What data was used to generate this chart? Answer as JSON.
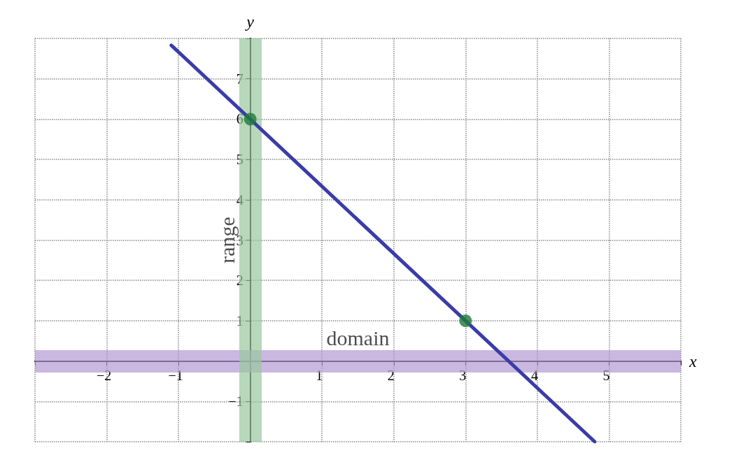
{
  "chart_data": {
    "type": "line",
    "xlabel": "x",
    "ylabel": "y",
    "xlim": [
      -3,
      6
    ],
    "ylim": [
      -2,
      8
    ],
    "xticks": [
      {
        "value": -3,
        "label": null
      },
      {
        "value": -2,
        "label": "−2"
      },
      {
        "value": -1,
        "label": "−1"
      },
      {
        "value": 0,
        "label": null
      },
      1,
      2,
      3,
      4,
      5,
      {
        "value": 6,
        "label": null
      }
    ],
    "yticks": [
      {
        "value": -2,
        "label": null
      },
      {
        "value": -1,
        "label": "−1"
      },
      {
        "value": 0,
        "label": null
      },
      1,
      2,
      3,
      4,
      5,
      6,
      7,
      {
        "value": 8,
        "label": null
      }
    ],
    "series": [
      {
        "type": "line",
        "x": [
          -1.1,
          4.8
        ],
        "values": [
          7.83,
          -2
        ],
        "color": "#3a3ca8",
        "marker": "none",
        "line_style": "solid"
      },
      {
        "type": "scatter",
        "x": [
          0,
          3
        ],
        "values": [
          6,
          1
        ],
        "color": "#1f7a3a",
        "marker": "circle"
      }
    ],
    "ref_lines": [
      {
        "axis": "y",
        "value": 0,
        "label": "domain",
        "color": "#b49ad4"
      },
      {
        "axis": "x",
        "value": 0,
        "label": "range",
        "color": "#98c89c"
      }
    ],
    "grid": true
  }
}
